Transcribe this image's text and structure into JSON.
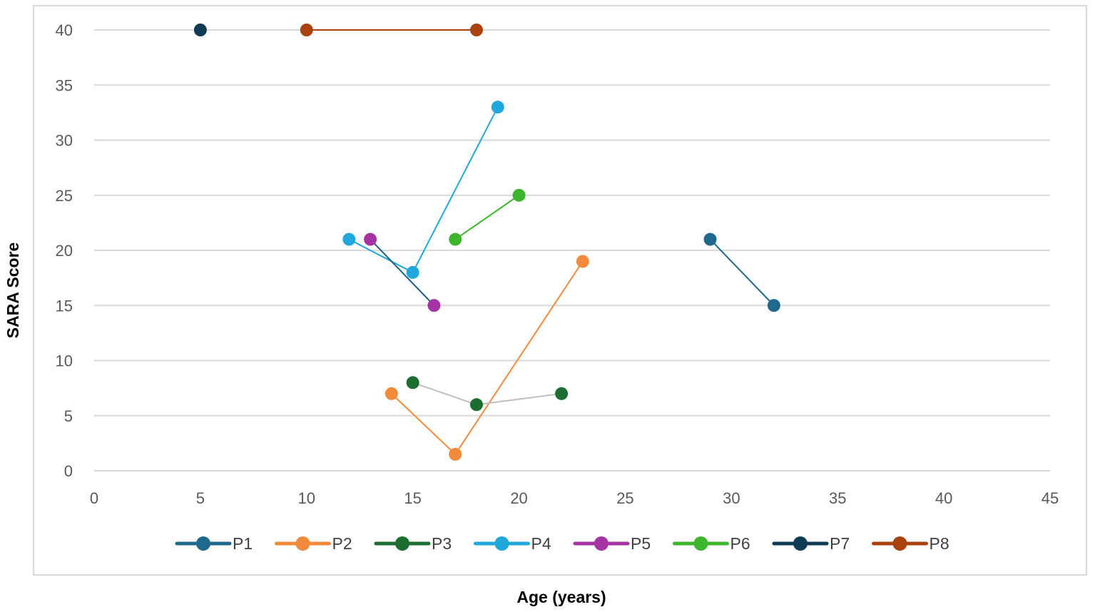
{
  "chart_data": {
    "type": "line",
    "title": "",
    "xlabel": "Age (years)",
    "ylabel": "SARA Score",
    "xlim": [
      0,
      45
    ],
    "ylim": [
      0,
      40
    ],
    "xticks": [
      "0",
      "5",
      "10",
      "15",
      "20",
      "25",
      "30",
      "35",
      "40",
      "45"
    ],
    "yticks": [
      "0",
      "5",
      "10",
      "15",
      "20",
      "25",
      "30",
      "35",
      "40"
    ],
    "grid": "horizontal",
    "legend_position": "bottom",
    "series": [
      {
        "name": "P1",
        "color": "#1f6a8c",
        "points": [
          [
            29,
            21
          ],
          [
            32,
            15
          ]
        ]
      },
      {
        "name": "P2",
        "color": "#f28a3c",
        "points": [
          [
            14,
            7
          ],
          [
            17,
            1.5
          ],
          [
            23,
            19
          ]
        ]
      },
      {
        "name": "P3",
        "color": "#1b6e2f",
        "line_color": "#bfbfbf",
        "points": [
          [
            15,
            8
          ],
          [
            18,
            6
          ],
          [
            22,
            7
          ]
        ]
      },
      {
        "name": "P4",
        "color": "#20a7db",
        "points": [
          [
            12,
            21
          ],
          [
            15,
            18
          ],
          [
            19,
            33
          ]
        ]
      },
      {
        "name": "P5",
        "color": "#a533a3",
        "line_color": "#1f5f82",
        "points": [
          [
            13,
            21
          ],
          [
            16,
            15
          ]
        ]
      },
      {
        "name": "P6",
        "color": "#3db62d",
        "points": [
          [
            17,
            21
          ],
          [
            20,
            25
          ]
        ]
      },
      {
        "name": "P7",
        "color": "#0f3b55",
        "points": [
          [
            5,
            40
          ]
        ]
      },
      {
        "name": "P8",
        "color": "#a8420f",
        "points": [
          [
            10,
            40
          ],
          [
            18,
            40
          ]
        ]
      }
    ]
  }
}
